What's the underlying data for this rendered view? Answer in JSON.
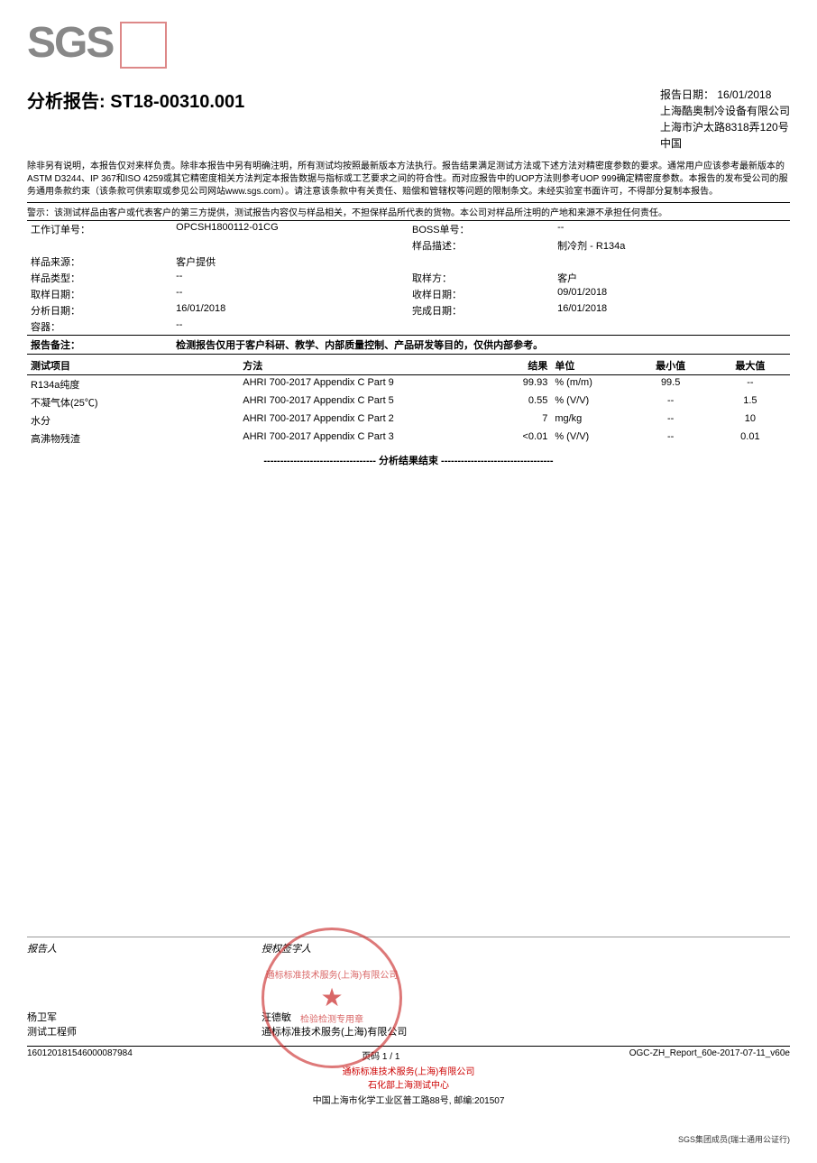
{
  "logo": {
    "text": "SGS"
  },
  "header": {
    "title_label": "分析报告:",
    "report_no": "ST18-00310.001",
    "date_label": "报告日期：",
    "date": "16/01/2018",
    "company": "上海酷奥制冷设备有限公司",
    "address": "上海市沪太路8318弄120号",
    "country": "中国"
  },
  "disclaimer": "除非另有说明，本报告仅对来样负责。除非本报告中另有明确注明，所有测试均按照最新版本方法执行。报告结果满足测试方法或下述方法对精密度参数的要求。通常用户应该参考最新版本的ASTM D3244、IP 367和ISO 4259或其它精密度相关方法判定本报告数据与指标或工艺要求之间的符合性。而对应报告中的UOP方法则参考UOP 999确定精密度参数。本报告的发布受公司的服务通用条款约束（该条款可供索取或参见公司网站www.sgs.com）。请注意该条款中有关责任、赔偿和管辖权等问题的限制条文。未经实验室书面许可，不得部分复制本报告。",
  "warning": "警示：该测试样品由客户或代表客户的第三方提供，测试报告内容仅与样品相关，不担保样品所代表的货物。本公司对样品所注明的产地和来源不承担任何责任。",
  "info": {
    "work_order_lbl": "工作订单号：",
    "work_order": "OPCSH1800112-01CG",
    "boss_lbl": "BOSS单号：",
    "boss": "--",
    "sample_desc_lbl": "样品描述：",
    "sample_desc": "制冷剂 - R134a",
    "source_lbl": "样品来源：",
    "source": "客户提供",
    "type_lbl": "样品类型：",
    "type": "--",
    "sampler_lbl": "取样方：",
    "sampler": "客户",
    "sample_date_lbl": "取样日期：",
    "sample_date": "--",
    "receive_date_lbl": "收样日期：",
    "receive_date": "09/01/2018",
    "analysis_date_lbl": "分析日期：",
    "analysis_date": "16/01/2018",
    "complete_date_lbl": "完成日期：",
    "complete_date": "16/01/2018",
    "container_lbl": "容器：",
    "container": "--",
    "remark_lbl": "报告备注：",
    "remark": "检测报告仅用于客户科研、教学、内部质量控制、产品研发等目的，仅供内部参考。"
  },
  "results": {
    "headers": {
      "item": "测试项目",
      "method": "方法",
      "result": "结果",
      "unit": "单位",
      "min": "最小值",
      "max": "最大值"
    },
    "rows": [
      {
        "item": "R134a纯度",
        "method": "AHRI 700-2017 Appendix C Part 9",
        "result": "99.93",
        "unit": "% (m/m)",
        "min": "99.5",
        "max": "--"
      },
      {
        "item": "不凝气体(25℃)",
        "method": "AHRI 700-2017 Appendix C Part 5",
        "result": "0.55",
        "unit": "% (V/V)",
        "min": "--",
        "max": "1.5"
      },
      {
        "item": "水分",
        "method": "AHRI 700-2017 Appendix C Part 2",
        "result": "7",
        "unit": "mg/kg",
        "min": "--",
        "max": "10"
      },
      {
        "item": "高沸物残渣",
        "method": "AHRI 700-2017 Appendix C Part 3",
        "result": "<0.01",
        "unit": "% (V/V)",
        "min": "--",
        "max": "0.01"
      }
    ],
    "end_text": "---------------------------------- 分析结果结束 ----------------------------------"
  },
  "footer": {
    "reporter_lbl": "报告人",
    "signer_lbl": "授权签字人",
    "reporter_name": "杨卫军",
    "reporter_title": "测试工程师",
    "signer_name": "汪德敏",
    "signer_org": "通标标准技术服务(上海)有限公司",
    "stamp_line1": "通标标准技术服务(上海)有限公司",
    "stamp_line2": "检验检测专用章",
    "barcode": "160120181546000087984",
    "page": "页码 1 / 1",
    "doc_ref": "OGC-ZH_Report_60e-2017-07-11_v60e",
    "red1": "通标标准技术服务(上海)有限公司",
    "red2": "石化部上海测试中心",
    "address": "中国上海市化学工业区普工路88号, 邮编:201507",
    "corner": "SGS集团成员(瑞士通用公证行)"
  }
}
